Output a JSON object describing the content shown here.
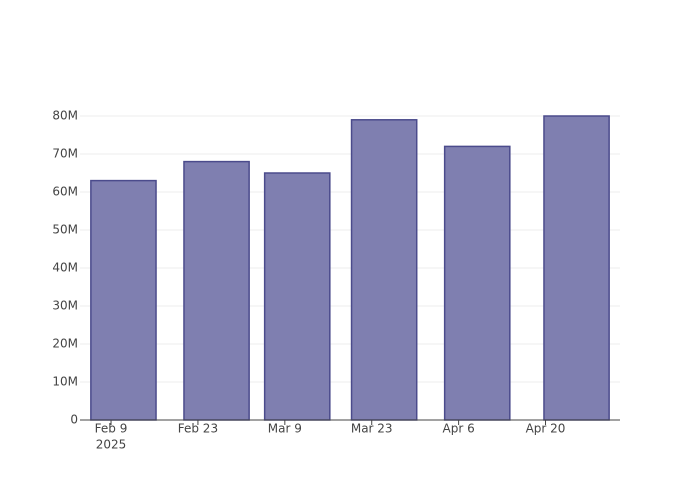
{
  "chart_data": {
    "type": "bar",
    "x": [
      "2025-02-11",
      "2025-02-26",
      "2025-03-11",
      "2025-03-25",
      "2025-04-09",
      "2025-04-25"
    ],
    "values": [
      63000000,
      68000000,
      65000000,
      79000000,
      72000000,
      80000000
    ],
    "color": "#7f7fb0",
    "line_color": "#4b4b8c",
    "bar_width_days": 10.5,
    "xlim": [
      "2025-02-04",
      "2025-05-02"
    ],
    "xticks": [
      {
        "value": "2025-02-09",
        "label": "Feb 9",
        "sublabel": "2025"
      },
      {
        "value": "2025-02-23",
        "label": "Feb 23"
      },
      {
        "value": "2025-03-09",
        "label": "Mar 9"
      },
      {
        "value": "2025-03-23",
        "label": "Mar 23"
      },
      {
        "value": "2025-04-06",
        "label": "Apr 6"
      },
      {
        "value": "2025-04-20",
        "label": "Apr 20"
      }
    ],
    "ylim": [
      0,
      80000000
    ],
    "yticks": [
      0,
      {
        "value": 10000000,
        "label": "10M"
      },
      {
        "value": 20000000,
        "label": "20M"
      },
      {
        "value": 30000000,
        "label": "30M"
      },
      {
        "value": 40000000,
        "label": "40M"
      },
      {
        "value": 50000000,
        "label": "50M"
      },
      {
        "value": 60000000,
        "label": "60M"
      },
      {
        "value": 70000000,
        "label": "70M"
      },
      {
        "value": 80000000,
        "label": "80M"
      }
    ],
    "grid": true
  }
}
